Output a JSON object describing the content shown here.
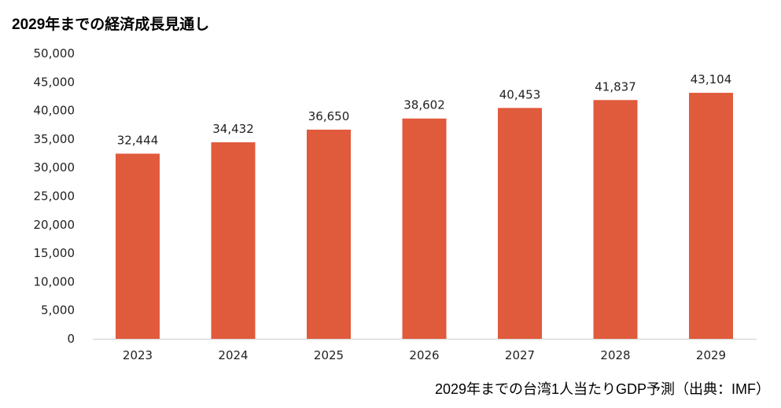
{
  "chart_data": {
    "type": "bar",
    "title": "2029年までの経済成長見通し",
    "caption": "2029年までの台湾1人当たりGDP予測（出典：IMF）",
    "categories": [
      "2023",
      "2024",
      "2025",
      "2026",
      "2027",
      "2028",
      "2029"
    ],
    "values": [
      32444,
      34432,
      36650,
      38602,
      40453,
      41837,
      43104
    ],
    "data_labels": [
      "32,444",
      "34,432",
      "36,650",
      "38,602",
      "40,453",
      "41,837",
      "43,104"
    ],
    "ylim": [
      0,
      50000
    ],
    "yticks": [
      "0",
      "5,000",
      "10,000",
      "15,000",
      "20,000",
      "25,000",
      "30,000",
      "35,000",
      "40,000",
      "45,000",
      "50,000"
    ],
    "xlabel": "",
    "ylabel": "",
    "grid": false,
    "bar_color": "#e05a3c"
  }
}
